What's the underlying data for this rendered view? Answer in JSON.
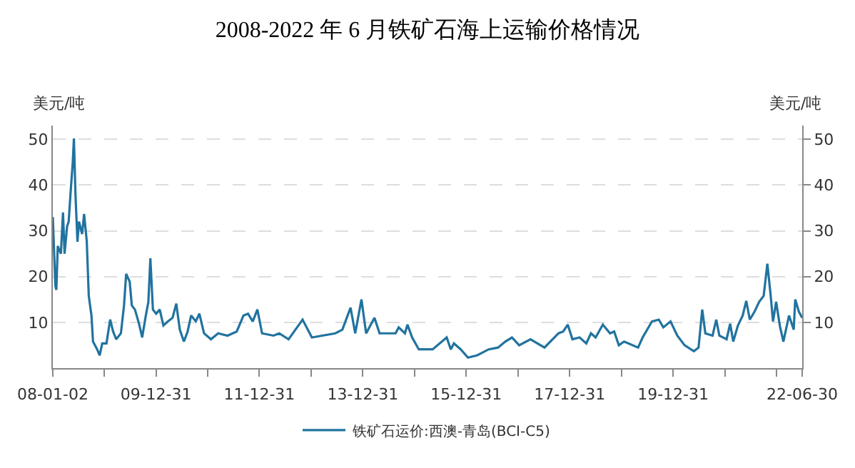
{
  "chart_data": {
    "type": "line",
    "title": "2008-2022 年 6 月铁矿石海上运输价格情况",
    "ylabel": "美元/吨",
    "y2label": "美元/吨",
    "xlim": [
      "2008-01-02",
      "2022-06-30"
    ],
    "xticks": [
      {
        "value": "2008-01-02",
        "label": "08-01-02"
      },
      {
        "value": "2008-12-31",
        "label": null
      },
      {
        "value": "2009-12-31",
        "label": "09-12-31"
      },
      {
        "value": "2010-12-31",
        "label": null
      },
      {
        "value": "2011-12-31",
        "label": "11-12-31"
      },
      {
        "value": "2012-12-31",
        "label": null
      },
      {
        "value": "2013-12-31",
        "label": "13-12-31"
      },
      {
        "value": "2014-12-31",
        "label": null
      },
      {
        "value": "2015-12-31",
        "label": "15-12-31"
      },
      {
        "value": "2016-12-31",
        "label": null
      },
      {
        "value": "2017-12-31",
        "label": "17-12-31"
      },
      {
        "value": "2018-12-31",
        "label": null
      },
      {
        "value": "2019-12-31",
        "label": "19-12-31"
      },
      {
        "value": "2020-12-31",
        "label": null
      },
      {
        "value": "2021-12-31",
        "label": null
      },
      {
        "value": "2022-06-30",
        "label": "22-06-30"
      }
    ],
    "ylim": [
      0,
      53
    ],
    "yticks": [
      10,
      20,
      30,
      40,
      50
    ],
    "y2lim": [
      0,
      53
    ],
    "y2ticks": [
      10,
      20,
      30,
      40,
      50
    ],
    "grid": "y",
    "legend": "bottom",
    "marker": "none",
    "line_style": "solid",
    "x": [
      "2008-01-02",
      "2008-01-20",
      "2008-01-27",
      "2008-02-06",
      "2008-02-28",
      "2008-03-14",
      "2008-03-25",
      "2008-04-12",
      "2008-04-23",
      "2008-05-08",
      "2008-05-22",
      "2008-05-30",
      "2008-06-10",
      "2008-06-24",
      "2008-07-05",
      "2008-07-27",
      "2008-08-10",
      "2008-08-29",
      "2008-09-12",
      "2008-10-01",
      "2008-10-12",
      "2008-11-10",
      "2008-11-28",
      "2008-12-16",
      "2009-01-15",
      "2009-02-10",
      "2009-03-03",
      "2009-03-25",
      "2009-04-27",
      "2009-05-19",
      "2009-06-03",
      "2009-06-28",
      "2009-07-13",
      "2009-08-04",
      "2009-09-02",
      "2009-09-24",
      "2009-10-20",
      "2009-11-07",
      "2009-11-21",
      "2009-12-09",
      "2010-01-01",
      "2010-01-26",
      "2010-02-21",
      "2010-03-25",
      "2010-04-27",
      "2010-05-23",
      "2010-06-17",
      "2010-07-16",
      "2010-08-11",
      "2010-09-05",
      "2010-10-08",
      "2010-11-02",
      "2010-12-05",
      "2011-01-23",
      "2011-03-15",
      "2011-05-20",
      "2011-07-24",
      "2011-09-10",
      "2011-10-12",
      "2011-11-14",
      "2011-12-17",
      "2012-01-19",
      "2012-04-09",
      "2012-05-19",
      "2012-07-24",
      "2012-10-31",
      "2013-01-05",
      "2013-06-19",
      "2013-08-08",
      "2013-10-05",
      "2013-11-07",
      "2013-12-21",
      "2014-01-23",
      "2014-03-23",
      "2014-04-28",
      "2014-08-19",
      "2014-09-10",
      "2014-10-24",
      "2014-11-11",
      "2014-12-14",
      "2015-01-30",
      "2015-05-08",
      "2015-08-15",
      "2015-09-13",
      "2015-10-05",
      "2015-11-22",
      "2016-01-12",
      "2016-03-18",
      "2016-06-07",
      "2016-08-12",
      "2016-10-02",
      "2016-11-18",
      "2017-01-08",
      "2017-03-29",
      "2017-07-06",
      "2017-10-13",
      "2017-11-15",
      "2017-12-17",
      "2018-01-19",
      "2018-03-11",
      "2018-04-27",
      "2018-05-30",
      "2018-07-02",
      "2018-08-22",
      "2018-10-12",
      "2018-11-10",
      "2018-12-13",
      "2019-01-19",
      "2019-04-28",
      "2019-05-30",
      "2019-08-04",
      "2019-09-21",
      "2019-10-23",
      "2019-12-13",
      "2020-01-30",
      "2020-03-21",
      "2020-05-26",
      "2020-06-28",
      "2020-07-24",
      "2020-08-15",
      "2020-10-05",
      "2020-10-31",
      "2020-11-22",
      "2021-01-12",
      "2021-02-06",
      "2021-02-28",
      "2021-04-02",
      "2021-05-06",
      "2021-05-31",
      "2021-06-25",
      "2021-07-28",
      "2021-08-30",
      "2021-10-01",
      "2021-10-27",
      "2021-11-18",
      "2021-12-06",
      "2021-12-28",
      "2022-01-23",
      "2022-02-17",
      "2022-03-29",
      "2022-05-01",
      "2022-05-12",
      "2022-06-07",
      "2022-06-30"
    ],
    "series": [
      {
        "name": "铁矿石运价:西澳-青岛(BCI-C5)",
        "color": "#21739f",
        "values": [
          33.0,
          18.0,
          17.1,
          26.7,
          25,
          34,
          25,
          31,
          32,
          39,
          45,
          50.2,
          38,
          27.6,
          32,
          29.3,
          33.7,
          27.6,
          15.8,
          11.5,
          5.8,
          4.1,
          2.8,
          5.4,
          5.4,
          10.6,
          8,
          6.3,
          7.6,
          13.7,
          20.6,
          18.9,
          13.7,
          12.8,
          9.7,
          6.7,
          11.5,
          14.5,
          24,
          12.8,
          11.9,
          12.8,
          9.3,
          10.2,
          11,
          14.1,
          8.4,
          5.8,
          8,
          11.5,
          10.2,
          11.9,
          7.6,
          6.3,
          7.6,
          7.1,
          8,
          11.5,
          11.9,
          10.2,
          12.8,
          7.6,
          7.1,
          7.6,
          6.3,
          10.6,
          6.7,
          7.6,
          8.4,
          13.2,
          7.6,
          15,
          7.6,
          11,
          7.6,
          7.6,
          8.9,
          7.6,
          9.5,
          6.7,
          4.1,
          4.1,
          6.7,
          4.1,
          5.4,
          4.1,
          2.3,
          2.8,
          4.1,
          4.5,
          5.8,
          6.7,
          5,
          6.3,
          4.5,
          7.6,
          8,
          9.5,
          6.3,
          6.7,
          5.4,
          7.6,
          6.7,
          9.5,
          7.6,
          8,
          5,
          5.8,
          4.5,
          6.7,
          10.2,
          10.6,
          8.9,
          10.2,
          7.1,
          5,
          3.7,
          4.5,
          12.8,
          7.6,
          7.1,
          10.6,
          7.1,
          6.3,
          9.7,
          5.8,
          9.3,
          11.5,
          14.7,
          10.6,
          12.3,
          14.5,
          15.8,
          22.8,
          16.3,
          10.2,
          14.5,
          9.3,
          5.8,
          11.5,
          8.4,
          15,
          12.3,
          11
        ]
      }
    ]
  }
}
